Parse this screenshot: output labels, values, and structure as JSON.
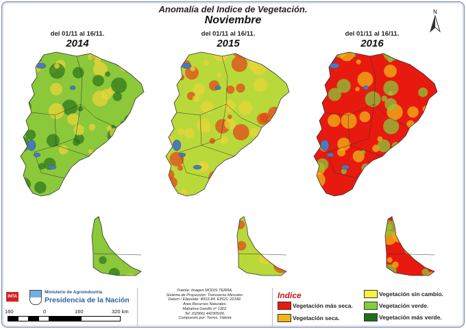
{
  "title": "Anomalía del Indice de Vegetación.",
  "month": "Noviembre",
  "panels": [
    {
      "period": "del 01/11 al 16/11.",
      "year": "2014"
    },
    {
      "period": "del 01/11 al 16/11.",
      "year": "2015"
    },
    {
      "period": "del 01/11 al 16/11.",
      "year": "2016"
    }
  ],
  "north_label": "N",
  "logos": {
    "inta": "INTA",
    "ministerio": "Ministerio de Agroindustria",
    "presidencia": "Presidencia de la Nación"
  },
  "scale": {
    "labels": [
      "160",
      "0",
      "160",
      "320 km"
    ]
  },
  "source_lines": [
    "Fuente: Imagen MODIS TERRA.",
    "Sistema de Proyección: Transverse Mercator.",
    "Datum / Elipsoide: WGS 84. EPGS: 22182.",
    "Área Recursos Naturales.",
    "Mahatma Gandhi nº 1322.",
    "Tel: (02966) 442305/06.",
    "Compuesto por: Torres, Valeria"
  ],
  "legend": {
    "title": "Indice",
    "items": [
      {
        "label": "Vegetación más seca.",
        "color": "#e8190f"
      },
      {
        "label": "Vegetación seca.",
        "color": "#f2b418"
      },
      {
        "label": "Vegetación sin cambio.",
        "color": "#f5f23a"
      },
      {
        "label": "Vegetación verde.",
        "color": "#7ed13a"
      },
      {
        "label": "Vegetación más verde.",
        "color": "#1f6e1a"
      }
    ]
  },
  "panel_colors": [
    {
      "base": "#8bc83a",
      "patch": "#2d7a1e",
      "dry": "#e8d43a"
    },
    {
      "base": "#b9d93a",
      "patch": "#e24a1a",
      "dry": "#e8d43a"
    },
    {
      "base": "#e8190f",
      "patch": "#f2b418",
      "dry": "#8bc83a"
    }
  ]
}
